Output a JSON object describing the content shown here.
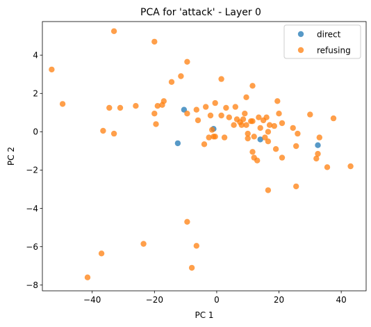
{
  "chart_data": {
    "type": "scatter",
    "title": "PCA for 'attack' - Layer 0",
    "xlabel": "PC 1",
    "ylabel": "PC 2",
    "xlim": [
      -56,
      48
    ],
    "ylim": [
      -8.3,
      5.75
    ],
    "xticks": [
      -40,
      -20,
      0,
      20,
      40
    ],
    "yticks": [
      -8,
      -6,
      -4,
      -2,
      0,
      2,
      4
    ],
    "grid": false,
    "legend_position": "top-right",
    "series": [
      {
        "name": "direct",
        "color": "#1f77b4",
        "points": [
          [
            -10.5,
            1.15
          ],
          [
            -12.5,
            -0.6
          ],
          [
            -1.0,
            0.15
          ],
          [
            14.0,
            -0.4
          ],
          [
            32.5,
            -0.7
          ]
        ]
      },
      {
        "name": "refusing",
        "color": "#ff7f0e",
        "points": [
          [
            -53.0,
            3.25
          ],
          [
            -49.5,
            1.45
          ],
          [
            -41.5,
            -7.6
          ],
          [
            -37.0,
            -6.35
          ],
          [
            -36.5,
            0.05
          ],
          [
            -34.5,
            1.25
          ],
          [
            -33.0,
            5.25
          ],
          [
            -33.0,
            -0.1
          ],
          [
            -31.0,
            1.25
          ],
          [
            -26.0,
            1.35
          ],
          [
            -23.5,
            -5.85
          ],
          [
            -20.0,
            4.7
          ],
          [
            -20.0,
            0.95
          ],
          [
            -19.5,
            0.4
          ],
          [
            -19.0,
            1.35
          ],
          [
            -17.5,
            1.4
          ],
          [
            -17.0,
            1.6
          ],
          [
            -14.5,
            2.6
          ],
          [
            -11.5,
            2.9
          ],
          [
            -9.5,
            3.65
          ],
          [
            -9.5,
            0.95
          ],
          [
            -9.5,
            -4.7
          ],
          [
            -8.0,
            -7.1
          ],
          [
            -6.5,
            1.15
          ],
          [
            -6.5,
            -5.95
          ],
          [
            -6.0,
            0.6
          ],
          [
            -4.0,
            -0.65
          ],
          [
            -3.5,
            1.3
          ],
          [
            -2.5,
            -0.3
          ],
          [
            -2.0,
            0.85
          ],
          [
            -1.5,
            0.1
          ],
          [
            -1.0,
            -0.25
          ],
          [
            -0.5,
            1.5
          ],
          [
            -0.5,
            -0.25
          ],
          [
            1.5,
            2.75
          ],
          [
            1.5,
            0.85
          ],
          [
            2.5,
            -0.3
          ],
          [
            3.0,
            1.25
          ],
          [
            4.0,
            0.75
          ],
          [
            5.5,
            0.35
          ],
          [
            6.0,
            1.3
          ],
          [
            6.5,
            0.65
          ],
          [
            7.5,
            0.5
          ],
          [
            8.0,
            0.35
          ],
          [
            8.5,
            0.65
          ],
          [
            9.0,
            0.95
          ],
          [
            9.5,
            1.8
          ],
          [
            9.5,
            0.35
          ],
          [
            10.0,
            -0.1
          ],
          [
            10.0,
            -0.35
          ],
          [
            11.0,
            0.55
          ],
          [
            11.5,
            2.4
          ],
          [
            11.5,
            -1.05
          ],
          [
            11.5,
            0.55
          ],
          [
            12.0,
            -0.25
          ],
          [
            12.0,
            -1.35
          ],
          [
            13.0,
            -1.5
          ],
          [
            13.5,
            0.75
          ],
          [
            14.0,
            0.2
          ],
          [
            15.0,
            0.6
          ],
          [
            15.5,
            -0.3
          ],
          [
            16.0,
            0.75
          ],
          [
            16.5,
            0.0
          ],
          [
            16.5,
            -3.05
          ],
          [
            16.5,
            -0.5
          ],
          [
            17.0,
            0.35
          ],
          [
            18.5,
            0.3
          ],
          [
            19.0,
            -0.9
          ],
          [
            19.5,
            1.6
          ],
          [
            20.0,
            0.95
          ],
          [
            21.0,
            -1.35
          ],
          [
            21.0,
            0.45
          ],
          [
            24.5,
            0.2
          ],
          [
            25.5,
            -0.75
          ],
          [
            25.5,
            -2.85
          ],
          [
            26.0,
            -0.1
          ],
          [
            30.0,
            0.9
          ],
          [
            32.0,
            -1.4
          ],
          [
            32.5,
            -1.15
          ],
          [
            33.0,
            -0.3
          ],
          [
            35.5,
            -1.85
          ],
          [
            37.5,
            0.7
          ],
          [
            43.0,
            -1.8
          ]
        ]
      }
    ]
  }
}
